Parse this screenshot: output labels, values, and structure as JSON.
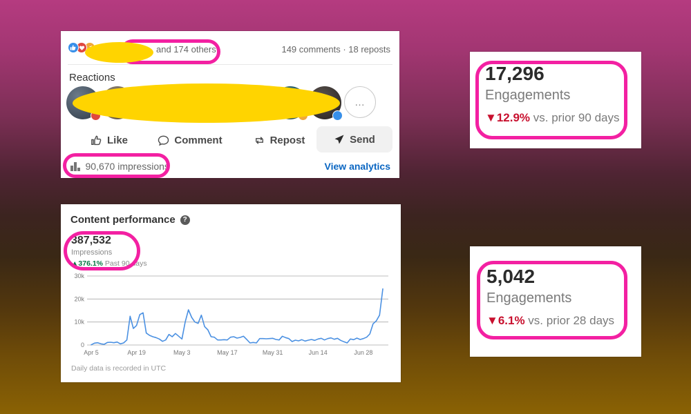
{
  "annotation_colors": {
    "highlight_pink": "#f320a2",
    "redaction_yellow": "#ffd400"
  },
  "post_panel": {
    "reaction_icons": [
      "like-reaction",
      "love-reaction",
      "celebrate-reaction"
    ],
    "others_text": "and 174 others",
    "stats_text": "149 comments · 18 reposts",
    "reactions_label": "Reactions",
    "more_label": "…",
    "actions": [
      {
        "label": "Like",
        "icon": "thumbs-up-icon"
      },
      {
        "label": "Comment",
        "icon": "comment-bubble-icon"
      },
      {
        "label": "Repost",
        "icon": "repost-arrows-icon"
      },
      {
        "label": "Send",
        "icon": "send-plane-icon"
      }
    ],
    "impressions_text": "90,670 impressions",
    "view_analytics_label": "View analytics"
  },
  "content_panel": {
    "title": "Content performance",
    "help_icon": "?",
    "metric_value": "387,532",
    "metric_label": "Impressions",
    "delta": "▲376.1%",
    "delta_period": " Past 90 days",
    "footnote": "Daily data is recorded in UTC"
  },
  "cards": [
    {
      "value": "17,296",
      "label": "Engagements",
      "delta": "▼12.9%",
      "delta_suffix": " vs. prior 90 days"
    },
    {
      "value": "5,042",
      "label": "Engagements",
      "delta": "▼6.1%",
      "delta_suffix": " vs. prior 28 days"
    }
  ],
  "chart_data": {
    "type": "line",
    "title": "Content performance — daily impressions",
    "line_color": "#4a90e2",
    "grid": true,
    "ylim": [
      0,
      30000
    ],
    "yticks": [
      {
        "v": 0,
        "label": "0"
      },
      {
        "v": 10000,
        "label": "10k"
      },
      {
        "v": 20000,
        "label": "20k"
      },
      {
        "v": 30000,
        "label": "30k"
      }
    ],
    "xticks": [
      {
        "i": 0,
        "label": "Apr 5"
      },
      {
        "i": 14,
        "label": "Apr 19"
      },
      {
        "i": 28,
        "label": "May 3"
      },
      {
        "i": 42,
        "label": "May 17"
      },
      {
        "i": 56,
        "label": "May 31"
      },
      {
        "i": 70,
        "label": "Jun 14"
      },
      {
        "i": 84,
        "label": "Jun 28"
      }
    ],
    "x_start_date": "Apr 5",
    "x_end_date": "Jul 4",
    "values": [
      100,
      800,
      1000,
      500,
      300,
      1100,
      1200,
      1000,
      1300,
      500,
      900,
      2200,
      12500,
      7200,
      8500,
      13200,
      14000,
      5200,
      4200,
      3600,
      3200,
      2600,
      1600,
      2200,
      4600,
      3600,
      5000,
      3800,
      2600,
      10000,
      15300,
      12000,
      10000,
      9400,
      13000,
      8000,
      6600,
      3600,
      3400,
      2200,
      2200,
      2300,
      2200,
      3400,
      3600,
      3000,
      3300,
      3800,
      2400,
      900,
      1100,
      900,
      2800,
      2800,
      2700,
      2800,
      2900,
      2400,
      2200,
      3800,
      3200,
      2800,
      1500,
      2100,
      1800,
      2300,
      1700,
      2100,
      2400,
      2000,
      2600,
      2900,
      2200,
      2800,
      3100,
      2500,
      2900,
      2000,
      1400,
      900,
      2600,
      2300,
      3000,
      2400,
      2800,
      3400,
      4800,
      9200,
      10500,
      13000,
      24400
    ]
  }
}
